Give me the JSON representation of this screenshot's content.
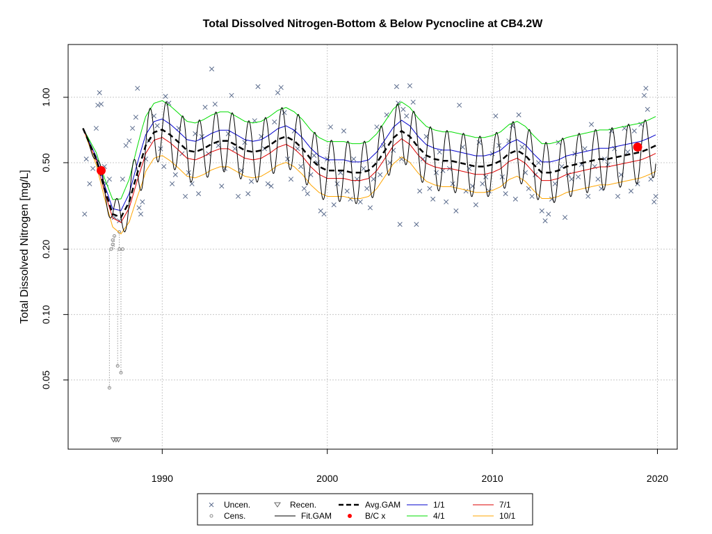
{
  "chart_data": {
    "type": "line",
    "title": "Total Dissolved Nitrogen-Bottom & Below Pycnocline at CB4.2W",
    "xlabel": "",
    "ylabel": "Total Dissolved Nitrogen [mg/L]",
    "y_scale": "log",
    "xlim": [
      1984.3,
      2021.2
    ],
    "ylim": [
      0.024,
      1.75
    ],
    "x_ticks": [
      1990,
      2000,
      2010,
      2020
    ],
    "x_tick_labels": [
      "1990",
      "2000",
      "2010",
      "2020"
    ],
    "y_ticks": [
      0.05,
      0.1,
      0.2,
      0.5,
      1.0
    ],
    "y_tick_labels": [
      "0.05",
      "0.10",
      "0.20",
      "0.50",
      "1.00"
    ],
    "grid": true,
    "legend_position": "bottom",
    "colors": {
      "uncensored": "#5a6b8c",
      "censored": "#888888",
      "fit_gam": "#000000",
      "avg_gam": "#000000",
      "bc": "#ff0000",
      "jan1": "#0000cc",
      "apr1": "#00dd00",
      "jul1": "#dd0000",
      "oct1": "#ffa500"
    },
    "legend": [
      {
        "key": "uncen",
        "label": "Uncen."
      },
      {
        "key": "cens",
        "label": "Cens."
      },
      {
        "key": "recen",
        "label": "Recen."
      },
      {
        "key": "fit",
        "label": "Fit.GAM"
      },
      {
        "key": "avg",
        "label": "Avg.GAM"
      },
      {
        "key": "bc",
        "label": "B/C x"
      },
      {
        "key": "jan1",
        "label": "1/1"
      },
      {
        "key": "apr1",
        "label": "4/1"
      },
      {
        "key": "jul1",
        "label": "7/1"
      },
      {
        "key": "oct1",
        "label": "10/1"
      }
    ],
    "avg_gam": {
      "x": [
        1985.2,
        1986.0,
        1986.5,
        1987.0,
        1987.5,
        1988.0,
        1988.5,
        1989.0,
        1989.5,
        1990.0,
        1990.5,
        1991.0,
        1991.5,
        1992.0,
        1992.5,
        1993.0,
        1993.5,
        1994.0,
        1994.5,
        1995.0,
        1995.5,
        1996.0,
        1996.5,
        1997.0,
        1997.5,
        1998.0,
        1998.5,
        1999.0,
        1999.5,
        2000.0,
        2000.5,
        2001.0,
        2001.5,
        2002.0,
        2002.5,
        2003.0,
        2003.5,
        2004.0,
        2004.5,
        2005.0,
        2005.5,
        2006.0,
        2006.5,
        2007.0,
        2007.5,
        2008.0,
        2008.5,
        2009.0,
        2009.5,
        2010.0,
        2010.5,
        2011.0,
        2011.5,
        2012.0,
        2012.5,
        2013.0,
        2013.5,
        2014.0,
        2014.5,
        2015.0,
        2015.5,
        2016.0,
        2016.5,
        2017.0,
        2017.5,
        2018.0,
        2018.5,
        2019.0,
        2019.5,
        2019.9
      ],
      "y": [
        0.72,
        0.52,
        0.38,
        0.29,
        0.28,
        0.33,
        0.45,
        0.6,
        0.69,
        0.71,
        0.67,
        0.62,
        0.57,
        0.56,
        0.58,
        0.61,
        0.63,
        0.63,
        0.6,
        0.57,
        0.56,
        0.57,
        0.6,
        0.64,
        0.66,
        0.63,
        0.58,
        0.52,
        0.48,
        0.46,
        0.46,
        0.46,
        0.45,
        0.45,
        0.46,
        0.5,
        0.57,
        0.65,
        0.7,
        0.66,
        0.59,
        0.54,
        0.52,
        0.51,
        0.51,
        0.5,
        0.49,
        0.48,
        0.48,
        0.49,
        0.51,
        0.55,
        0.57,
        0.54,
        0.49,
        0.45,
        0.45,
        0.46,
        0.48,
        0.49,
        0.5,
        0.51,
        0.52,
        0.52,
        0.53,
        0.54,
        0.55,
        0.56,
        0.58,
        0.6
      ]
    },
    "seasonal_ratio": {
      "jan1": 1.12,
      "apr1": 1.36,
      "jul1": 0.92,
      "oct1": 0.76
    },
    "fit_gam": {
      "cycles_per_year": 1,
      "amplitude_ratio_high": 1.38,
      "amplitude_ratio_low": 0.72,
      "x_start": 1985.2,
      "x_end": 2019.9
    },
    "bc_points": [
      {
        "x": 1986.3,
        "y": 0.46
      },
      {
        "x": 2018.8,
        "y": 0.59
      }
    ],
    "uncensored": [
      [
        1985.3,
        0.29
      ],
      [
        1985.4,
        0.52
      ],
      [
        1985.6,
        0.4
      ],
      [
        1985.8,
        0.47
      ],
      [
        1986.0,
        0.72
      ],
      [
        1986.1,
        0.92
      ],
      [
        1986.2,
        1.05
      ],
      [
        1986.3,
        0.93
      ],
      [
        1986.5,
        0.48
      ],
      [
        1986.6,
        0.4
      ],
      [
        1986.8,
        0.42
      ],
      [
        1987.1,
        0.28
      ],
      [
        1987.4,
        0.27
      ],
      [
        1987.6,
        0.42
      ],
      [
        1987.8,
        0.6
      ],
      [
        1988.0,
        0.63
      ],
      [
        1988.2,
        0.72
      ],
      [
        1988.4,
        0.81
      ],
      [
        1988.5,
        1.1
      ],
      [
        1988.6,
        0.31
      ],
      [
        1988.7,
        0.29
      ],
      [
        1988.8,
        0.33
      ],
      [
        1989.0,
        0.52
      ],
      [
        1989.2,
        0.63
      ],
      [
        1989.5,
        0.82
      ],
      [
        1989.7,
        0.74
      ],
      [
        1989.9,
        0.58
      ],
      [
        1990.1,
        0.48
      ],
      [
        1990.2,
        1.01
      ],
      [
        1990.4,
        0.94
      ],
      [
        1990.6,
        0.4
      ],
      [
        1990.8,
        0.44
      ],
      [
        1991.0,
        0.72
      ],
      [
        1991.2,
        0.55
      ],
      [
        1991.4,
        0.35
      ],
      [
        1991.6,
        0.45
      ],
      [
        1991.8,
        0.4
      ],
      [
        1992.0,
        0.68
      ],
      [
        1992.2,
        0.36
      ],
      [
        1992.4,
        0.66
      ],
      [
        1992.6,
        0.9
      ],
      [
        1992.8,
        0.55
      ],
      [
        1993.0,
        1.35
      ],
      [
        1993.2,
        0.93
      ],
      [
        1993.4,
        0.6
      ],
      [
        1993.6,
        0.39
      ],
      [
        1993.8,
        0.47
      ],
      [
        1994.0,
        0.68
      ],
      [
        1994.2,
        1.02
      ],
      [
        1994.4,
        0.58
      ],
      [
        1994.6,
        0.35
      ],
      [
        1994.8,
        0.46
      ],
      [
        1995.0,
        0.62
      ],
      [
        1995.2,
        0.36
      ],
      [
        1995.4,
        0.41
      ],
      [
        1995.6,
        0.78
      ],
      [
        1995.8,
        1.12
      ],
      [
        1996.0,
        0.66
      ],
      [
        1996.2,
        0.58
      ],
      [
        1996.4,
        0.4
      ],
      [
        1996.6,
        0.39
      ],
      [
        1996.8,
        0.77
      ],
      [
        1997.0,
        1.05
      ],
      [
        1997.2,
        1.11
      ],
      [
        1997.4,
        0.85
      ],
      [
        1997.6,
        0.52
      ],
      [
        1997.8,
        0.42
      ],
      [
        1998.0,
        0.7
      ],
      [
        1998.2,
        0.58
      ],
      [
        1998.4,
        0.48
      ],
      [
        1998.6,
        0.38
      ],
      [
        1998.8,
        0.36
      ],
      [
        1999.0,
        0.44
      ],
      [
        1999.2,
        0.54
      ],
      [
        1999.4,
        0.5
      ],
      [
        1999.6,
        0.3
      ],
      [
        1999.8,
        0.29
      ],
      [
        2000.0,
        0.52
      ],
      [
        2000.2,
        0.73
      ],
      [
        2000.4,
        0.32
      ],
      [
        2000.6,
        0.4
      ],
      [
        2000.8,
        0.45
      ],
      [
        2001.0,
        0.7
      ],
      [
        2001.2,
        0.37
      ],
      [
        2001.4,
        0.34
      ],
      [
        2001.6,
        0.52
      ],
      [
        2001.8,
        0.42
      ],
      [
        2002.0,
        0.33
      ],
      [
        2002.2,
        0.47
      ],
      [
        2002.4,
        0.38
      ],
      [
        2002.6,
        0.31
      ],
      [
        2002.8,
        0.42
      ],
      [
        2003.0,
        0.73
      ],
      [
        2003.2,
        0.44
      ],
      [
        2003.4,
        0.6
      ],
      [
        2003.6,
        0.83
      ],
      [
        2003.8,
        0.5
      ],
      [
        2004.0,
        0.57
      ],
      [
        2004.2,
        1.12
      ],
      [
        2004.3,
        0.94
      ],
      [
        2004.4,
        0.26
      ],
      [
        2004.5,
        0.52
      ],
      [
        2004.6,
        0.88
      ],
      [
        2004.8,
        0.82
      ],
      [
        2005.0,
        1.13
      ],
      [
        2005.2,
        0.95
      ],
      [
        2005.4,
        0.26
      ],
      [
        2005.6,
        0.37
      ],
      [
        2005.8,
        0.52
      ],
      [
        2006.0,
        0.66
      ],
      [
        2006.2,
        0.38
      ],
      [
        2006.4,
        0.34
      ],
      [
        2006.6,
        0.45
      ],
      [
        2006.8,
        0.56
      ],
      [
        2007.0,
        0.46
      ],
      [
        2007.2,
        0.33
      ],
      [
        2007.4,
        0.47
      ],
      [
        2007.6,
        0.4
      ],
      [
        2007.8,
        0.3
      ],
      [
        2008.0,
        0.92
      ],
      [
        2008.2,
        0.59
      ],
      [
        2008.4,
        0.37
      ],
      [
        2008.6,
        0.47
      ],
      [
        2008.8,
        0.39
      ],
      [
        2009.0,
        0.32
      ],
      [
        2009.2,
        0.62
      ],
      [
        2009.4,
        0.4
      ],
      [
        2009.6,
        0.43
      ],
      [
        2009.8,
        0.37
      ],
      [
        2010.0,
        0.55
      ],
      [
        2010.2,
        0.82
      ],
      [
        2010.4,
        0.6
      ],
      [
        2010.6,
        0.43
      ],
      [
        2010.8,
        0.36
      ],
      [
        2011.0,
        0.63
      ],
      [
        2011.2,
        0.74
      ],
      [
        2011.4,
        0.34
      ],
      [
        2011.6,
        0.83
      ],
      [
        2011.8,
        0.59
      ],
      [
        2012.0,
        0.45
      ],
      [
        2012.2,
        0.38
      ],
      [
        2012.4,
        0.35
      ],
      [
        2012.6,
        0.44
      ],
      [
        2012.8,
        0.5
      ],
      [
        2013.0,
        0.3
      ],
      [
        2013.2,
        0.27
      ],
      [
        2013.4,
        0.29
      ],
      [
        2013.6,
        0.34
      ],
      [
        2013.8,
        0.4
      ],
      [
        2014.0,
        0.62
      ],
      [
        2014.2,
        0.48
      ],
      [
        2014.4,
        0.28
      ],
      [
        2014.6,
        0.44
      ],
      [
        2014.8,
        0.42
      ],
      [
        2015.0,
        0.55
      ],
      [
        2015.2,
        0.43
      ],
      [
        2015.4,
        0.49
      ],
      [
        2015.6,
        0.58
      ],
      [
        2015.8,
        0.35
      ],
      [
        2016.0,
        0.75
      ],
      [
        2016.2,
        0.48
      ],
      [
        2016.4,
        0.42
      ],
      [
        2016.6,
        0.38
      ],
      [
        2016.8,
        0.52
      ],
      [
        2017.0,
        0.49
      ],
      [
        2017.2,
        0.7
      ],
      [
        2017.4,
        0.58
      ],
      [
        2017.6,
        0.35
      ],
      [
        2017.8,
        0.44
      ],
      [
        2018.0,
        0.72
      ],
      [
        2018.2,
        0.56
      ],
      [
        2018.4,
        0.37
      ],
      [
        2018.6,
        0.7
      ],
      [
        2018.8,
        0.4
      ],
      [
        2019.0,
        0.75
      ],
      [
        2019.2,
        1.02
      ],
      [
        2019.3,
        1.1
      ],
      [
        2019.4,
        0.88
      ],
      [
        2019.6,
        0.42
      ],
      [
        2019.8,
        0.33
      ],
      [
        2019.9,
        0.35
      ]
    ],
    "censored": [
      [
        1986.8,
        0.046
      ],
      [
        1986.9,
        0.2
      ],
      [
        1987.0,
        0.22
      ],
      [
        1987.0,
        0.21
      ],
      [
        1987.1,
        0.23
      ],
      [
        1987.3,
        0.058
      ],
      [
        1987.4,
        0.2
      ],
      [
        1987.4,
        0.24
      ],
      [
        1987.5,
        0.054
      ],
      [
        1987.6,
        0.2
      ]
    ],
    "recensored": [
      [
        1987.05,
        0.0265
      ],
      [
        1987.2,
        0.0265
      ],
      [
        1987.35,
        0.0265
      ]
    ]
  }
}
